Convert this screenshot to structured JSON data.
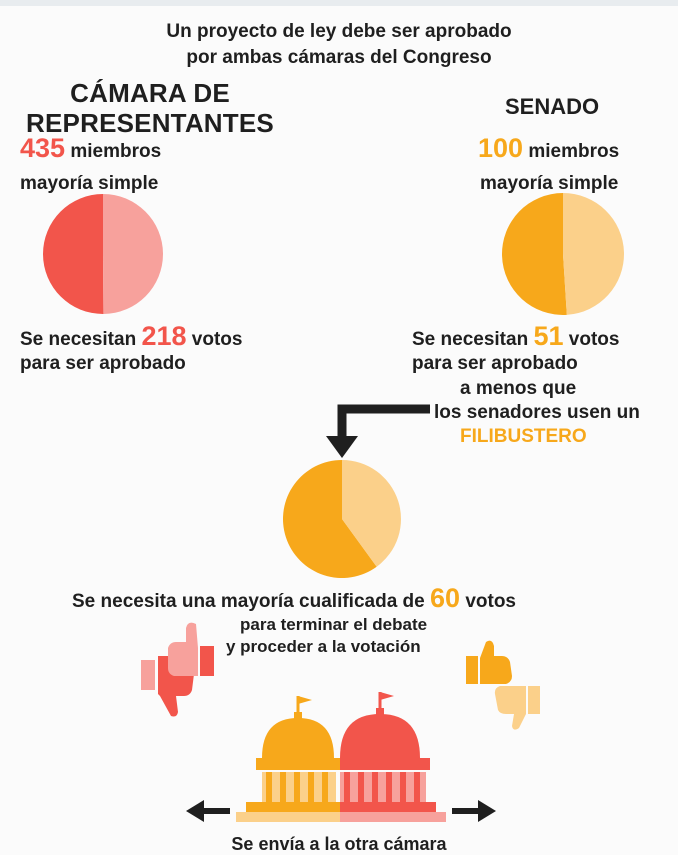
{
  "title": {
    "line1": "Un proyecto de ley debe ser aprobado",
    "line2": "por ambas cámaras del Congreso"
  },
  "house": {
    "heading_line1": "CÁMARA DE",
    "heading_line2": "REPRESENTANTES",
    "members_number": "435",
    "members_label": "miembros",
    "majority": "mayoría simple",
    "votes_prefix": "Se necesitan",
    "votes_number": "218",
    "votes_suffix": "votos",
    "votes_line2": "para ser aprobado"
  },
  "senate": {
    "heading": "SENADO",
    "members_number": "100",
    "members_label": "miembros",
    "majority": "mayoría simple",
    "votes_prefix": "Se necesitan",
    "votes_number": "51",
    "votes_suffix": "votos",
    "votes_line2": "para ser aprobado",
    "unless": "a menos que",
    "unless_line2": "los senadores usen un",
    "filibuster": "FILIBUSTERO"
  },
  "cloture": {
    "line1_prefix": "Se necesita una mayoría cualificada de",
    "line1_number": "60",
    "line1_suffix": "votos",
    "line2": "para terminar el debate",
    "line3": "y proceder a la votación"
  },
  "footer": {
    "sent": "Se envía a la otra cámara"
  },
  "chart_data": [
    {
      "type": "pie",
      "categories": [
        "",
        ""
      ],
      "values": [
        218,
        217
      ],
      "colors": [
        "#f2554b",
        "#f7a19c"
      ]
    },
    {
      "type": "pie",
      "categories": [
        "",
        ""
      ],
      "values": [
        51,
        49
      ],
      "colors": [
        "#f7a81b",
        "#fbd08a"
      ]
    },
    {
      "type": "pie",
      "categories": [
        "",
        ""
      ],
      "values": [
        60,
        40
      ],
      "colors": [
        "#f7a81b",
        "#fbd08a"
      ]
    }
  ],
  "colors": {
    "red": "#f2554b",
    "light_red": "#f7a19c",
    "orange": "#f7a81b",
    "light_orange": "#fbd08a",
    "dark": "#1f1f1f"
  }
}
